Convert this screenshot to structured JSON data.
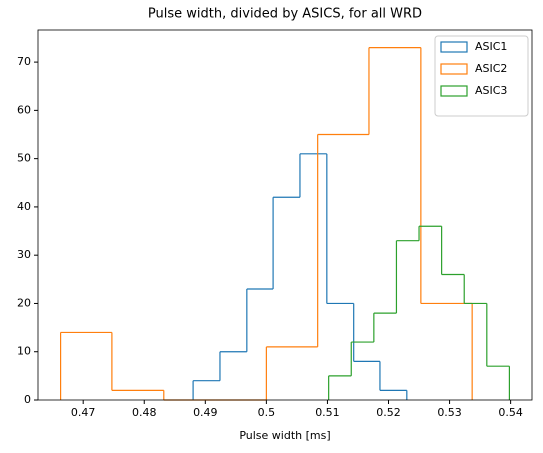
{
  "chart_data": {
    "type": "histogram",
    "title": "Pulse width, divided by ASICS, for all WRD",
    "xlabel": "Pulse width [ms]",
    "xlim": [
      0.4626,
      0.5435
    ],
    "ylim": [
      0,
      76.65
    ],
    "xticks": [
      0.47,
      0.48,
      0.49,
      0.5,
      0.51,
      0.52,
      0.53,
      0.54
    ],
    "yticks": [
      0,
      10,
      20,
      30,
      40,
      50,
      60,
      70
    ],
    "legend": "upper right",
    "series": [
      {
        "name": "ASIC1",
        "color": "#1f77b4",
        "bins": [
          0.488,
          0.4924,
          0.4968,
          0.5011,
          0.5055,
          0.5099,
          0.5143,
          0.5186,
          0.523
        ],
        "values": [
          4,
          10,
          23,
          42,
          51,
          20,
          8,
          2
        ]
      },
      {
        "name": "ASIC2",
        "color": "#ff7f0e",
        "bins": [
          0.4663,
          0.4747,
          0.4832,
          0.4916,
          0.5,
          0.5084,
          0.5168,
          0.5253,
          0.5337
        ],
        "values": [
          14,
          2,
          0,
          0,
          11,
          55,
          73,
          20
        ]
      },
      {
        "name": "ASIC3",
        "color": "#2ca02c",
        "bins": [
          0.5102,
          0.5139,
          0.5176,
          0.5213,
          0.525,
          0.5287,
          0.5324,
          0.5361,
          0.5398
        ],
        "values": [
          5,
          12,
          18,
          33,
          36,
          26,
          20,
          7
        ]
      }
    ]
  }
}
